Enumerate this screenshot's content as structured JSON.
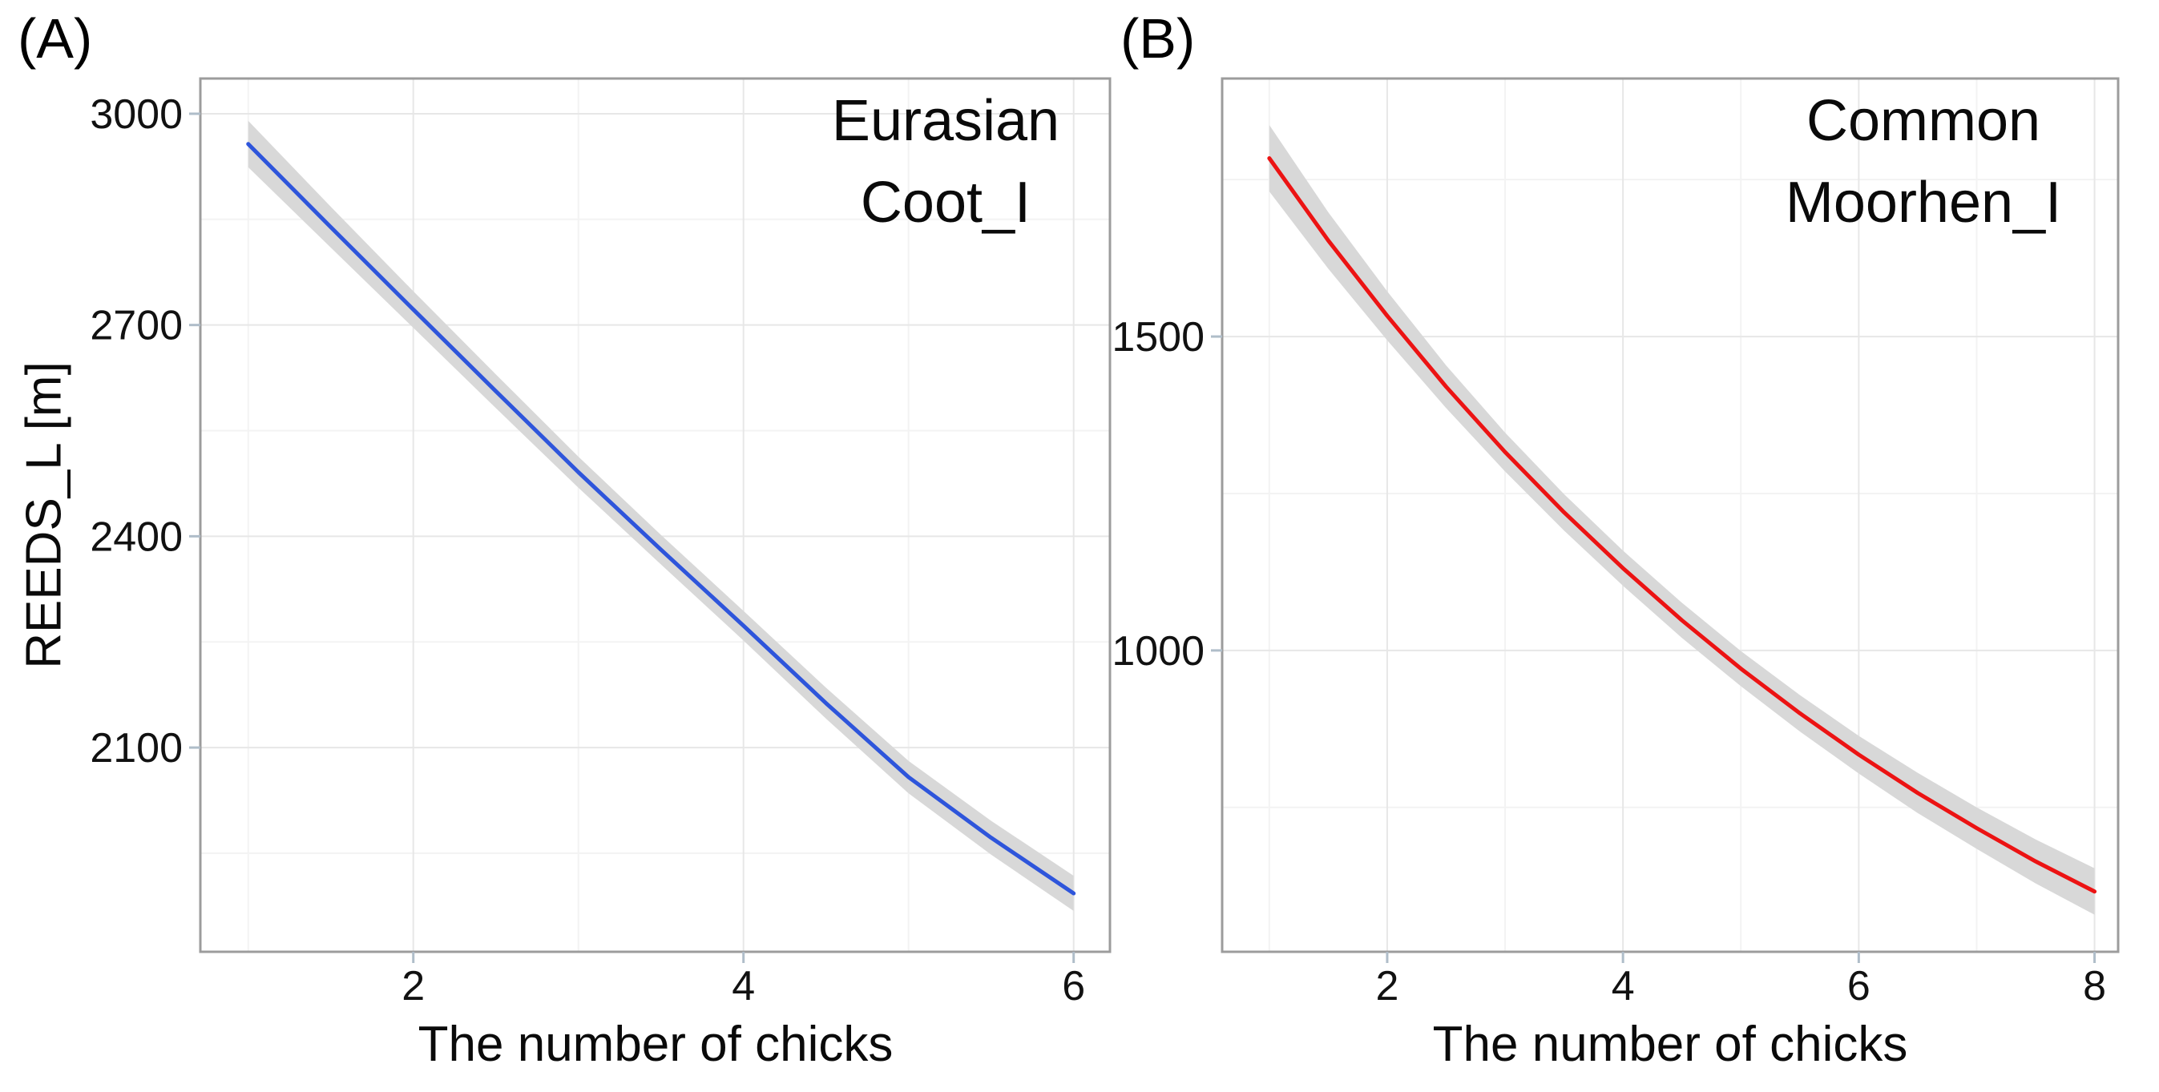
{
  "figure": {
    "background": "#ffffff",
    "text_color": "#0a0a0a"
  },
  "chart_data": [
    {
      "type": "line",
      "panel_label": "(A)",
      "title": "Eurasian Coot_I",
      "title_lines": [
        "Eurasian",
        "Coot_I"
      ],
      "xlabel": "The number of chicks",
      "ylabel": "REEDS_L [m]",
      "x_ticks": [
        2,
        4,
        6
      ],
      "x_minor_ticks": [
        1,
        3,
        5
      ],
      "y_ticks": [
        3000,
        2700,
        2400,
        2100
      ],
      "y_minor_ticks": [
        2850,
        2550,
        2250,
        1950
      ],
      "xlim": [
        0.71,
        6.22
      ],
      "ylim": [
        1810,
        3050
      ],
      "grid": "major+minor",
      "legend": "none",
      "line_color": "#2E55DB",
      "ci_color": "#D8D8D8",
      "series": [
        {
          "name": "fitted REEDS_L vs number of chicks (Eurasian Coot_I)",
          "x": [
            1,
            1.5,
            2,
            2.5,
            3,
            3.5,
            4,
            4.5,
            5,
            5.5,
            6
          ],
          "y": [
            2957,
            2839,
            2722,
            2606,
            2491,
            2381,
            2273,
            2163,
            2058,
            1972,
            1893
          ],
          "ci_lower": [
            2924,
            2810,
            2696,
            2582,
            2469,
            2360,
            2252,
            2141,
            2035,
            1948,
            1868
          ],
          "ci_upper": [
            2990,
            2868,
            2748,
            2630,
            2513,
            2402,
            2294,
            2185,
            2081,
            1996,
            1918
          ]
        }
      ]
    },
    {
      "type": "line",
      "panel_label": "(B)",
      "title": "Common Moorhen_I",
      "title_lines": [
        "Common",
        "Moorhen_I"
      ],
      "xlabel": "The number of chicks",
      "ylabel": "",
      "x_ticks": [
        2,
        4,
        6,
        8
      ],
      "x_minor_ticks": [
        1,
        3,
        5,
        7
      ],
      "y_ticks": [
        1500,
        1000
      ],
      "y_minor_ticks": [
        1750,
        1250,
        750
      ],
      "xlim": [
        0.6,
        8.2
      ],
      "ylim": [
        520,
        1911
      ],
      "grid": "major+minor",
      "legend": "none",
      "line_color": "#EC1313",
      "ci_color": "#D8D8D8",
      "series": [
        {
          "name": "fitted REEDS_L vs number of chicks (Common Moorhen_I)",
          "x": [
            1,
            1.5,
            2,
            2.5,
            3,
            3.5,
            4,
            4.5,
            5,
            5.5,
            6,
            6.5,
            7,
            7.5,
            8
          ],
          "y": [
            1784,
            1653,
            1533,
            1420,
            1316,
            1220,
            1131,
            1048,
            971,
            900,
            834,
            773,
            717,
            664,
            616
          ],
          "ci_lower": [
            1731,
            1608,
            1494,
            1386,
            1285,
            1191,
            1103,
            1020,
            943,
            871,
            804,
            741,
            684,
            629,
            579
          ],
          "ci_upper": [
            1837,
            1698,
            1572,
            1454,
            1347,
            1249,
            1159,
            1076,
            999,
            929,
            864,
            805,
            750,
            699,
            653
          ]
        }
      ]
    }
  ]
}
